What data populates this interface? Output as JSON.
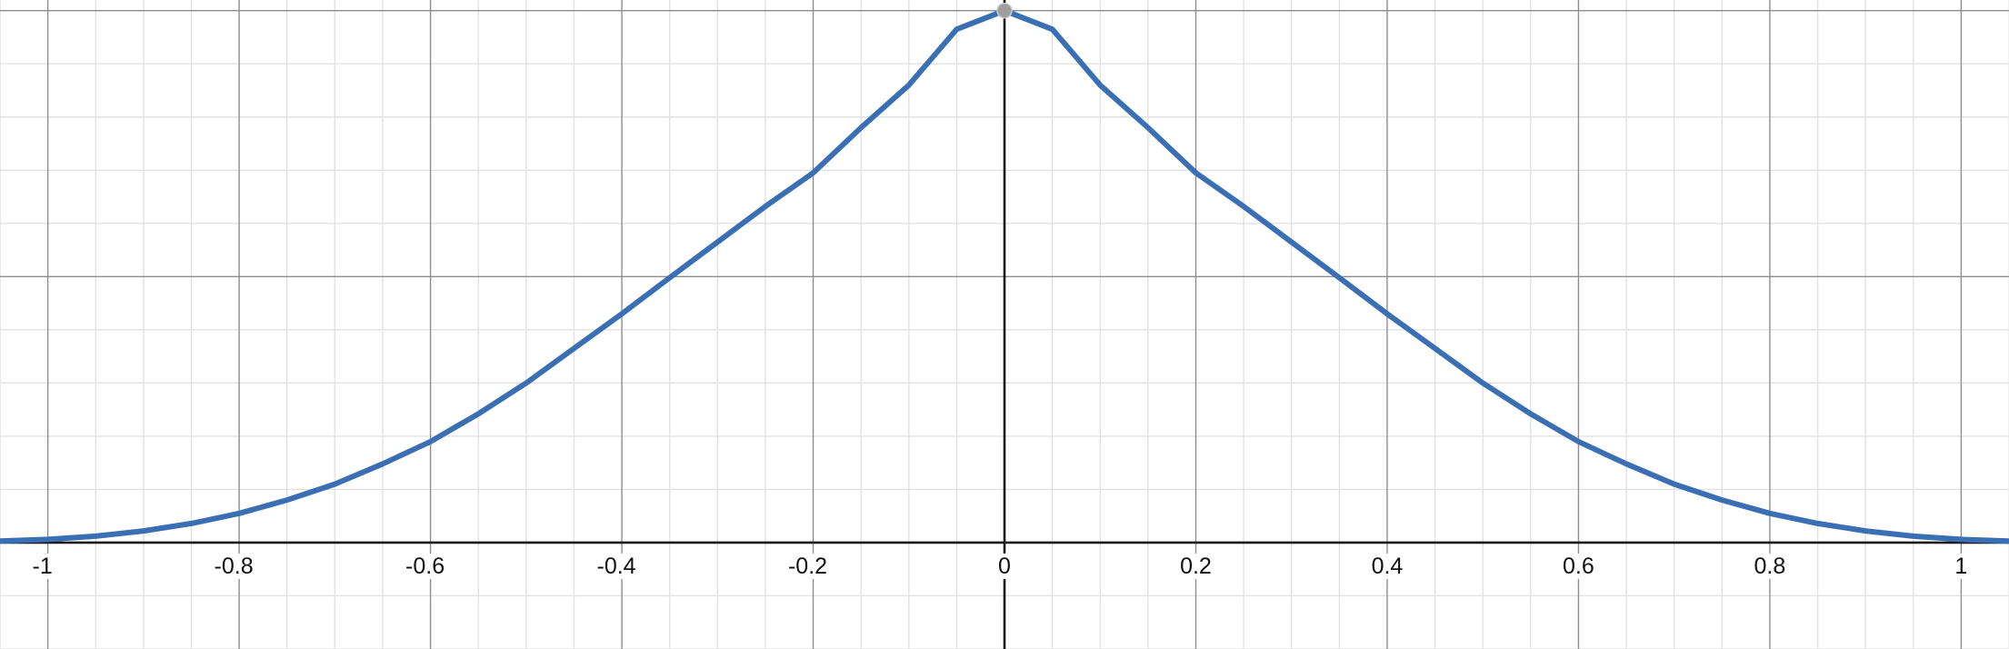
{
  "chart_data": {
    "type": "line",
    "title": "",
    "xlabel": "",
    "ylabel": "",
    "xlim": [
      -1.05,
      1.05
    ],
    "ylim": [
      -0.2,
      1.02
    ],
    "grid": true,
    "x_tick_values": [
      -1,
      -0.8,
      -0.6,
      -0.4,
      -0.2,
      0,
      0.2,
      0.4,
      0.6,
      0.8,
      1
    ],
    "x_tick_labels": [
      "-1",
      "-0.8",
      "-0.6",
      "-0.4",
      "-0.2",
      "0",
      "0.2",
      "0.4",
      "0.6",
      "0.8",
      "1"
    ],
    "y_major_gridlines": [
      0,
      0.5,
      1
    ],
    "highlight_point": {
      "x": 0,
      "y": 1
    },
    "series": [
      {
        "color": "#3b6fb4",
        "x": [
          -1.05,
          -1.0,
          -0.95,
          -0.9,
          -0.85,
          -0.8,
          -0.75,
          -0.7,
          -0.65,
          -0.6,
          -0.55,
          -0.5,
          -0.45,
          -0.4,
          -0.35,
          -0.3,
          -0.25,
          -0.2,
          -0.15,
          -0.1,
          -0.05,
          0,
          0.05,
          0.1,
          0.15,
          0.2,
          0.25,
          0.3,
          0.35,
          0.4,
          0.45,
          0.5,
          0.55,
          0.6,
          0.65,
          0.7,
          0.75,
          0.8,
          0.85,
          0.9,
          0.95,
          1.0,
          1.05
        ],
        "y": [
          0.003,
          0.006,
          0.012,
          0.022,
          0.036,
          0.055,
          0.08,
          0.11,
          0.148,
          0.19,
          0.242,
          0.3,
          0.365,
          0.43,
          0.498,
          0.565,
          0.632,
          0.695,
          0.78,
          0.86,
          0.965,
          1.0,
          0.965,
          0.86,
          0.78,
          0.695,
          0.632,
          0.565,
          0.498,
          0.43,
          0.365,
          0.3,
          0.242,
          0.19,
          0.148,
          0.11,
          0.08,
          0.055,
          0.036,
          0.022,
          0.012,
          0.006,
          0.003
        ]
      }
    ]
  },
  "colors": {
    "curve": "#3b6fb4",
    "point": "#9e9e9e",
    "axis": "#1a1a1a",
    "major_grid": "#8e8e8e",
    "minor_grid": "#e2e2e2"
  }
}
